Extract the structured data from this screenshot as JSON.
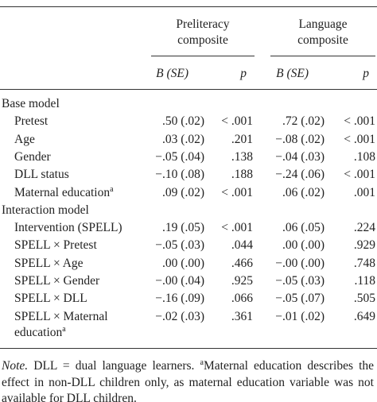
{
  "table": {
    "column_groups": [
      "Preliteracy composite",
      "Language composite"
    ],
    "column_heads": [
      "B (SE)",
      "p",
      "B (SE)",
      "p"
    ],
    "sections": [
      {
        "label": "Base model",
        "rows": [
          {
            "label": "Pretest",
            "cells": [
              ".50 (.02)",
              "< .001",
              ".72 (.02)",
              "< .001"
            ]
          },
          {
            "label": "Age",
            "cells": [
              ".03 (.02)",
              ".201",
              "−.08 (.02)",
              "< .001"
            ]
          },
          {
            "label": "Gender",
            "cells": [
              "−.05 (.04)",
              ".138",
              "−.04 (.03)",
              ".108"
            ]
          },
          {
            "label": "DLL status",
            "cells": [
              "−.10 (.08)",
              ".188",
              "−.24 (.06)",
              "< .001"
            ]
          },
          {
            "label": "Maternal education",
            "sup": "a",
            "cells": [
              ".09 (.02)",
              "< .001",
              ".06 (.02)",
              ".001"
            ]
          }
        ]
      },
      {
        "label": "Interaction model",
        "rows": [
          {
            "label": "Intervention (SPELL)",
            "cells": [
              ".19 (.05)",
              "< .001",
              ".06 (.05)",
              ".224"
            ]
          },
          {
            "label": "SPELL × Pretest",
            "cells": [
              "−.05 (.03)",
              ".044",
              ".00 (.00)",
              ".929"
            ]
          },
          {
            "label": "SPELL × Age",
            "cells": [
              ".00 (.00)",
              ".466",
              "−.00 (.00)",
              ".748"
            ]
          },
          {
            "label": "SPELL × Gender",
            "cells": [
              "−.00 (.04)",
              ".925",
              "−.05 (.03)",
              ".118"
            ]
          },
          {
            "label": "SPELL × DLL",
            "cells": [
              "−.16 (.09)",
              ".066",
              "−.05 (.07)",
              ".505"
            ]
          },
          {
            "label": "SPELL × Maternal education",
            "sup": "a",
            "cells": [
              "−.02 (.03)",
              ".361",
              "−.01 (.02)",
              ".649"
            ]
          }
        ]
      }
    ],
    "note": {
      "lead": "Note.",
      "text": "DLL = dual language learners.",
      "sup": "a",
      "rest": "Maternal education describes the effect in non-DLL children only, as maternal education variable was not available for DLL children."
    }
  }
}
